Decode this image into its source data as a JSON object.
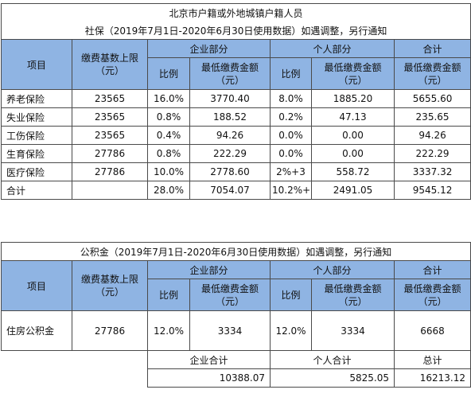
{
  "title": "北京市户籍或外地城镇户籍人员",
  "social_insurance": {
    "subtitle": "社保（2019年7月1日-2020年6月30日使用数据）如遇调整，另行通知",
    "headers": {
      "item": "项目",
      "base_limit": "缴费基数上限",
      "base_unit": "（元）",
      "company": "企业部分",
      "personal": "个人部分",
      "total": "合计",
      "ratio": "比例",
      "min_amount": "最低缴费金额",
      "min_unit": "（元）"
    },
    "rows": [
      {
        "item": "养老保险",
        "base": "23565",
        "c_ratio": "16.0%",
        "c_amount": "3770.40",
        "p_ratio": "8.0%",
        "p_amount": "1885.20",
        "total": "5655.60"
      },
      {
        "item": "失业保险",
        "base": "23565",
        "c_ratio": "0.8%",
        "c_amount": "188.52",
        "p_ratio": "0.2%",
        "p_amount": "47.13",
        "total": "235.65"
      },
      {
        "item": "工伤保险",
        "base": "23565",
        "c_ratio": "0.4%",
        "c_amount": "94.26",
        "p_ratio": "0.0%",
        "p_amount": "0.00",
        "total": "94.26"
      },
      {
        "item": "生育保险",
        "base": "27786",
        "c_ratio": "0.8%",
        "c_amount": "222.29",
        "p_ratio": "0.0%",
        "p_amount": "0.00",
        "total": "222.29"
      },
      {
        "item": "医疗保险",
        "base": "27786",
        "c_ratio": "10.0%",
        "c_amount": "2778.60",
        "p_ratio": "2%+3",
        "p_amount": "558.72",
        "total": "3337.32"
      }
    ],
    "sum": {
      "item": "合计",
      "base": "",
      "c_ratio": "28.0%",
      "c_amount": "7054.07",
      "p_ratio": "10.2%+",
      "p_amount": "2491.05",
      "total": "9545.12"
    }
  },
  "housing_fund": {
    "subtitle": "公积金（2019年7月1日-2020年6月30日使用数据）如遇调整，另行通知",
    "headers": {
      "item": "项目",
      "base_limit": "缴费基数上限",
      "base_unit": "（元）",
      "company": "企业部分",
      "personal": "个人部分",
      "total": "合计",
      "ratio": "比例",
      "min_amount": "最低缴费金额",
      "min_unit": "（元）"
    },
    "row": {
      "item": "住房公积金",
      "base": "27786",
      "c_ratio": "12.0%",
      "c_amount": "3334",
      "p_ratio": "12.0%",
      "p_amount": "3334",
      "total": "6668"
    }
  },
  "summary": {
    "company_label": "企业合计",
    "personal_label": "个人合计",
    "total_label": "总计",
    "company_value": "10388.07",
    "personal_value": "5825.05",
    "total_value": "16213.12"
  },
  "colors": {
    "header_bg": "#8fb4e3",
    "border": "#4a4a4a"
  }
}
